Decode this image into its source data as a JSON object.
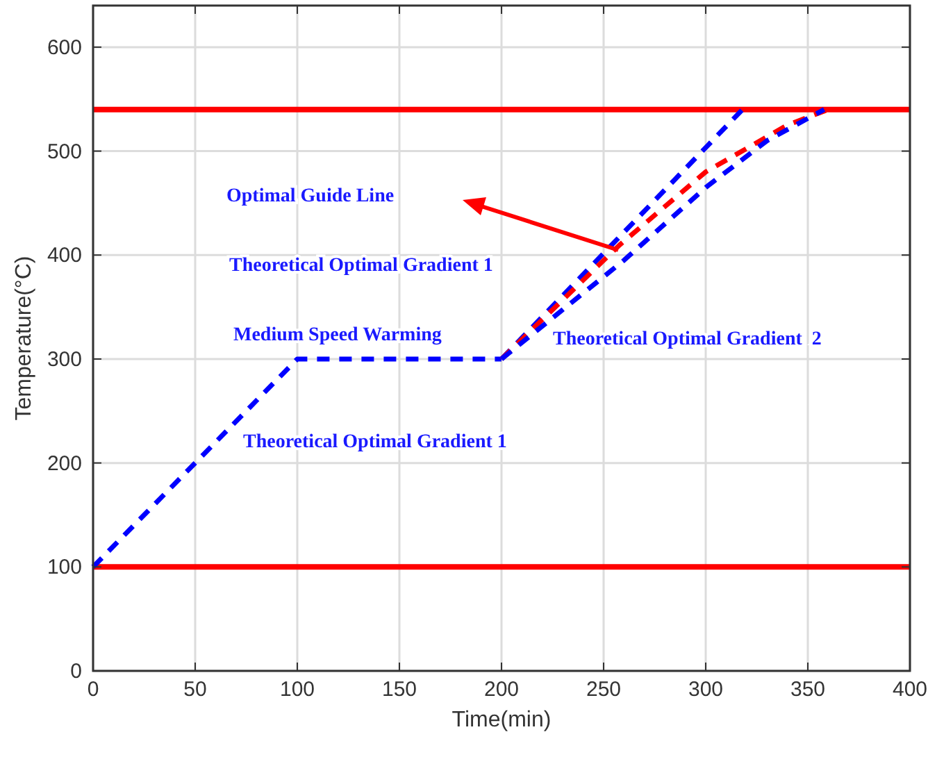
{
  "chart_data": {
    "type": "line",
    "xlabel": "Time(min)",
    "ylabel": "Temperature(°C)",
    "xlim": [
      0,
      400
    ],
    "ylim": [
      0,
      640
    ],
    "xticks": [
      0,
      50,
      100,
      150,
      200,
      250,
      300,
      350,
      400
    ],
    "yticks": [
      0,
      100,
      200,
      300,
      400,
      500,
      600
    ],
    "grid": true,
    "line_style": "dashed",
    "series": [
      {
        "color": "#0000ff",
        "x": [
          0,
          100,
          200
        ],
        "values": [
          100,
          300,
          300
        ]
      },
      {
        "color": "#0000ff",
        "x": [
          200,
          318
        ],
        "values": [
          300,
          540
        ]
      },
      {
        "color": "#ff0000",
        "x": [
          200,
          258,
          300,
          340,
          360
        ],
        "values": [
          300,
          410,
          480,
          525,
          540
        ]
      },
      {
        "color": "#0000ff",
        "x": [
          200,
          260,
          300,
          330,
          358
        ],
        "values": [
          300,
          395,
          465,
          510,
          540
        ]
      }
    ],
    "ref_lines": [
      {
        "axis": "y",
        "value": 100,
        "color": "#ff0000",
        "line_style": "solid"
      },
      {
        "axis": "y",
        "value": 540,
        "color": "#ff0000",
        "line_style": "solid"
      }
    ],
    "annotations": [
      "Optimal Guide Line",
      "Theoretical Optimal Gradient 1",
      "Medium Speed Warming",
      "Theoretical Optimal Gradient  2",
      "Theoretical Optimal Gradient 1"
    ]
  }
}
